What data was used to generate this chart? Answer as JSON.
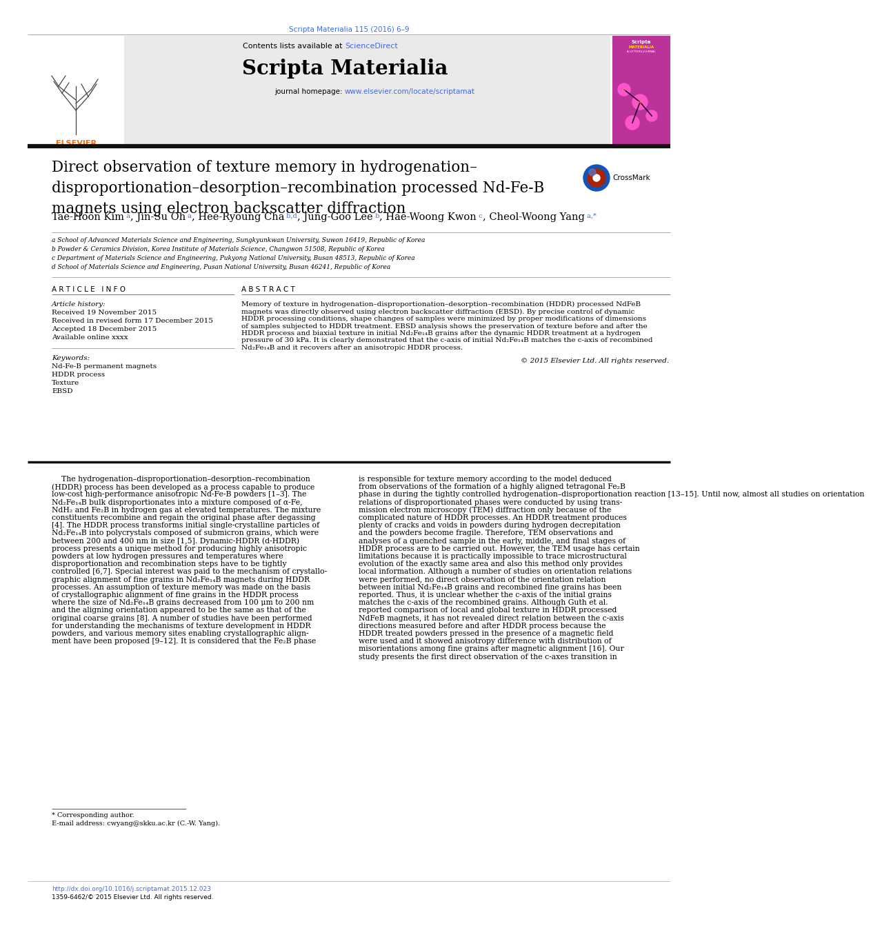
{
  "journal_ref": "Scripta Materialia 115 (2016) 6–9",
  "journal_ref_color": "#4169E1",
  "contents_line": "Contents lists available at",
  "sciencedirect_text": "ScienceDirect",
  "sciencedirect_color": "#4169E1",
  "journal_name": "Scripta Materialia",
  "journal_homepage_text": "journal homepage:",
  "journal_url": "www.elsevier.com/locate/scriptamat",
  "journal_url_color": "#4169E1",
  "article_title_line1": "Direct observation of texture memory in hydrogenation–",
  "article_title_line2": "disproportionation–desorption–recombination processed Nd-Fe-B",
  "article_title_line3": "magnets using electron backscatter diffraction",
  "affil_a": "a School of Advanced Materials Science and Engineering, Sungkyunkwan University, Suwon 16419, Republic of Korea",
  "affil_b": "b Powder & Ceramics Division, Korea Institute of Materials Science, Changwon 51508, Republic of Korea",
  "affil_c": "c Department of Materials Science and Engineering, Pukyong National University, Busan 48513, Republic of Korea",
  "affil_d": "d School of Materials Science and Engineering, Pusan National University, Busan 46241, Republic of Korea",
  "article_info_header": "ARTICLE  INFO",
  "article_history_label": "Article history:",
  "received_1": "Received 19 November 2015",
  "received_2": "Received in revised form 17 December 2015",
  "accepted": "Accepted 18 December 2015",
  "available": "Available online xxxx",
  "keywords_label": "Keywords:",
  "keyword1": "Nd-Fe-B permanent magnets",
  "keyword2": "HDDR process",
  "keyword3": "Texture",
  "keyword4": "EBSD",
  "abstract_header": "ABSTRACT",
  "abstract_lines": [
    "Memory of texture in hydrogenation–disproportionation–desorption–recombination (HDDR) processed NdFeB",
    "magnets was directly observed using electron backscatter diffraction (EBSD). By precise control of dynamic",
    "HDDR processing conditions, shape changes of samples were minimized by proper modifications of dimensions",
    "of samples subjected to HDDR treatment. EBSD analysis shows the preservation of texture before and after the",
    "HDDR process and biaxial texture in initial Nd₂Fe₁₄B grains after the dynamic HDDR treatment at a hydrogen",
    "pressure of 30 kPa. It is clearly demonstrated that the c-axis of initial Nd₂Fe₁₄B matches the c-axis of recombined",
    "Nd₂Fe₁₄B and it recovers after an anisotropic HDDR process."
  ],
  "copyright": "© 2015 Elsevier Ltd. All rights reserved.",
  "body_col1_lines": [
    "    The hydrogenation–disproportionation–desorption–recombination",
    "(HDDR) process has been developed as a process capable to produce",
    "low-cost high-performance anisotropic Nd-Fe-B powders [1–3]. The",
    "Nd₂Fe₁₄B bulk disproportionates into a mixture composed of α-Fe,",
    "NdH₂ and Fe₂B in hydrogen gas at elevated temperatures. The mixture",
    "constituents recombine and regain the original phase after degassing",
    "[4]. The HDDR process transforms initial single-crystalline particles of",
    "Nd₂Fe₁₄B into polycrystals composed of submicron grains, which were",
    "between 200 and 400 nm in size [1,5]. Dynamic-HDDR (d-HDDR)",
    "process presents a unique method for producing highly anisotropic",
    "powders at low hydrogen pressures and temperatures where",
    "disproportionation and recombination steps have to be tightly",
    "controlled [6,7]. Special interest was paid to the mechanism of crystallo-",
    "graphic alignment of fine grains in Nd₂Fe₁₄B magnets during HDDR",
    "processes. An assumption of texture memory was made on the basis",
    "of crystallographic alignment of fine grains in the HDDR process",
    "where the size of Nd₂Fe₁₄B grains decreased from 100 μm to 200 nm",
    "and the aligning orientation appeared to be the same as that of the",
    "original coarse grains [8]. A number of studies have been performed",
    "for understanding the mechanisms of texture development in HDDR",
    "powders, and various memory sites enabling crystallographic align-",
    "ment have been proposed [9–12]. It is considered that the Fe₂B phase"
  ],
  "body_col2_lines": [
    "is responsible for texture memory according to the model deduced",
    "from observations of the formation of a highly aligned tetragonal Fe₂B",
    "phase in during the tightly controlled hydrogenation–disproportionation reaction [13–15]. Until now, almost all studies on orientation",
    "relations of disproportionated phases were conducted by using trans-",
    "mission electron microscopy (TEM) diffraction only because of the",
    "complicated nature of HDDR processes. An HDDR treatment produces",
    "plenty of cracks and voids in powders during hydrogen decrepitation",
    "and the powders become fragile. Therefore, TEM observations and",
    "analyses of a quenched sample in the early, middle, and final stages of",
    "HDDR process are to be carried out. However, the TEM usage has certain",
    "limitations because it is practically impossible to trace microstructural",
    "evolution of the exactly same area and also this method only provides",
    "local information. Although a number of studies on orientation relations",
    "were performed, no direct observation of the orientation relation",
    "between initial Nd₂Fe₁₄B grains and recombined fine grains has been",
    "reported. Thus, it is unclear whether the c-axis of the initial grains",
    "matches the c-axis of the recombined grains. Although Guth et al.",
    "reported comparison of local and global texture in HDDR processed",
    "NdFeB magnets, it has not revealed direct relation between the c-axis",
    "directions measured before and after HDDR process because the",
    "HDDR treated powders pressed in the presence of a magnetic field",
    "were used and it showed anisotropy difference with distribution of",
    "misorientations among fine grains after magnetic alignment [16]. Our",
    "study presents the first direct observation of the c-axes transition in"
  ],
  "footnote_corresponding": "* Corresponding author.",
  "footnote_email": "E-mail address: cwyang@skku.ac.kr (C.-W. Yang).",
  "doi_text": "http://dx.doi.org/10.1016/j.scriptamat.2015.12.023",
  "issn_text": "1359-6462/© 2015 Elsevier Ltd. All rights reserved.",
  "bg_color": "#FFFFFF"
}
